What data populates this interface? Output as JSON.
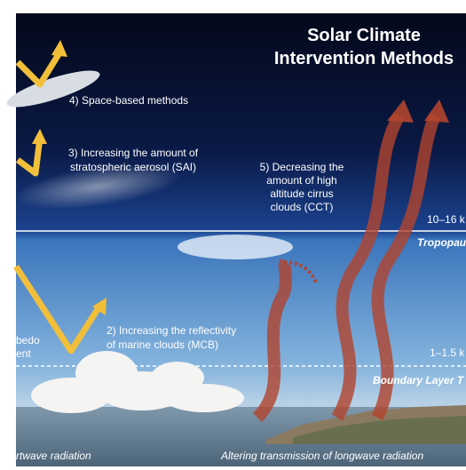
{
  "title": {
    "lines": [
      "Solar Climate",
      "Intervention Methods"
    ]
  },
  "methods": {
    "space": "4) Space-based methods",
    "sai": [
      "3) Increasing the amount of",
      "stratospheric aerosol (SAI)"
    ],
    "cct": [
      "5) Decreasing the",
      "amount of high",
      "altitude cirrus",
      "clouds (CCT)"
    ],
    "mcb": [
      "2) Increasing the reflectivity",
      "of marine clouds (MCB)"
    ],
    "albedo": [
      "bedo",
      "ent"
    ]
  },
  "altitudes": {
    "tropopause_height": "10–16 k",
    "tropopause": "Tropopau",
    "boundary_height": "1–1.5 k",
    "boundary": "Boundary Layer T"
  },
  "footer": {
    "left": "rtwave radiation",
    "right": "Altering transmission of longwave radiation"
  }
}
